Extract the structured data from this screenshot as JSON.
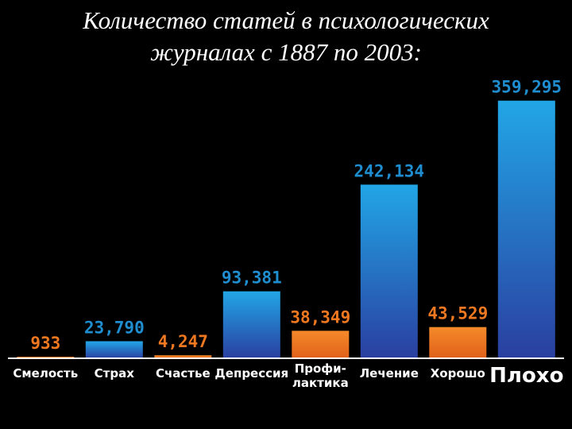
{
  "title_line1": "Количество статей в психологических",
  "title_line2": "журналах с 1887 по 2003:",
  "colors": {
    "positive": "#f07820",
    "negative": "#1f8ed0",
    "background": "#000000",
    "axis": "#ffffff"
  },
  "chart_data": {
    "type": "bar",
    "title": "Количество статей в психологических журналах с 1887 по 2003:",
    "xlabel": "",
    "ylabel": "",
    "ylim": [
      0,
      380000
    ],
    "grid": false,
    "categories": [
      {
        "label": [
          "Смелость"
        ],
        "value": 933,
        "value_label": "933",
        "kind": "positive"
      },
      {
        "label": [
          "Страх"
        ],
        "value": 23790,
        "value_label": "23,790",
        "kind": "negative"
      },
      {
        "label": [
          "Счастье"
        ],
        "value": 4247,
        "value_label": "4,247",
        "kind": "positive"
      },
      {
        "label": [
          "Депрессия"
        ],
        "value": 93381,
        "value_label": "93,381",
        "kind": "negative"
      },
      {
        "label": [
          "Профи-",
          "лактика"
        ],
        "value": 38349,
        "value_label": "38,349",
        "kind": "positive"
      },
      {
        "label": [
          "Лечение"
        ],
        "value": 242134,
        "value_label": "242,134",
        "kind": "negative"
      },
      {
        "label": [
          "Хорошо"
        ],
        "value": 43529,
        "value_label": "43,529",
        "kind": "positive"
      },
      {
        "label": [
          "Плохо"
        ],
        "value": 359295,
        "value_label": "359,295",
        "kind": "negative",
        "emphasis": true
      }
    ]
  }
}
